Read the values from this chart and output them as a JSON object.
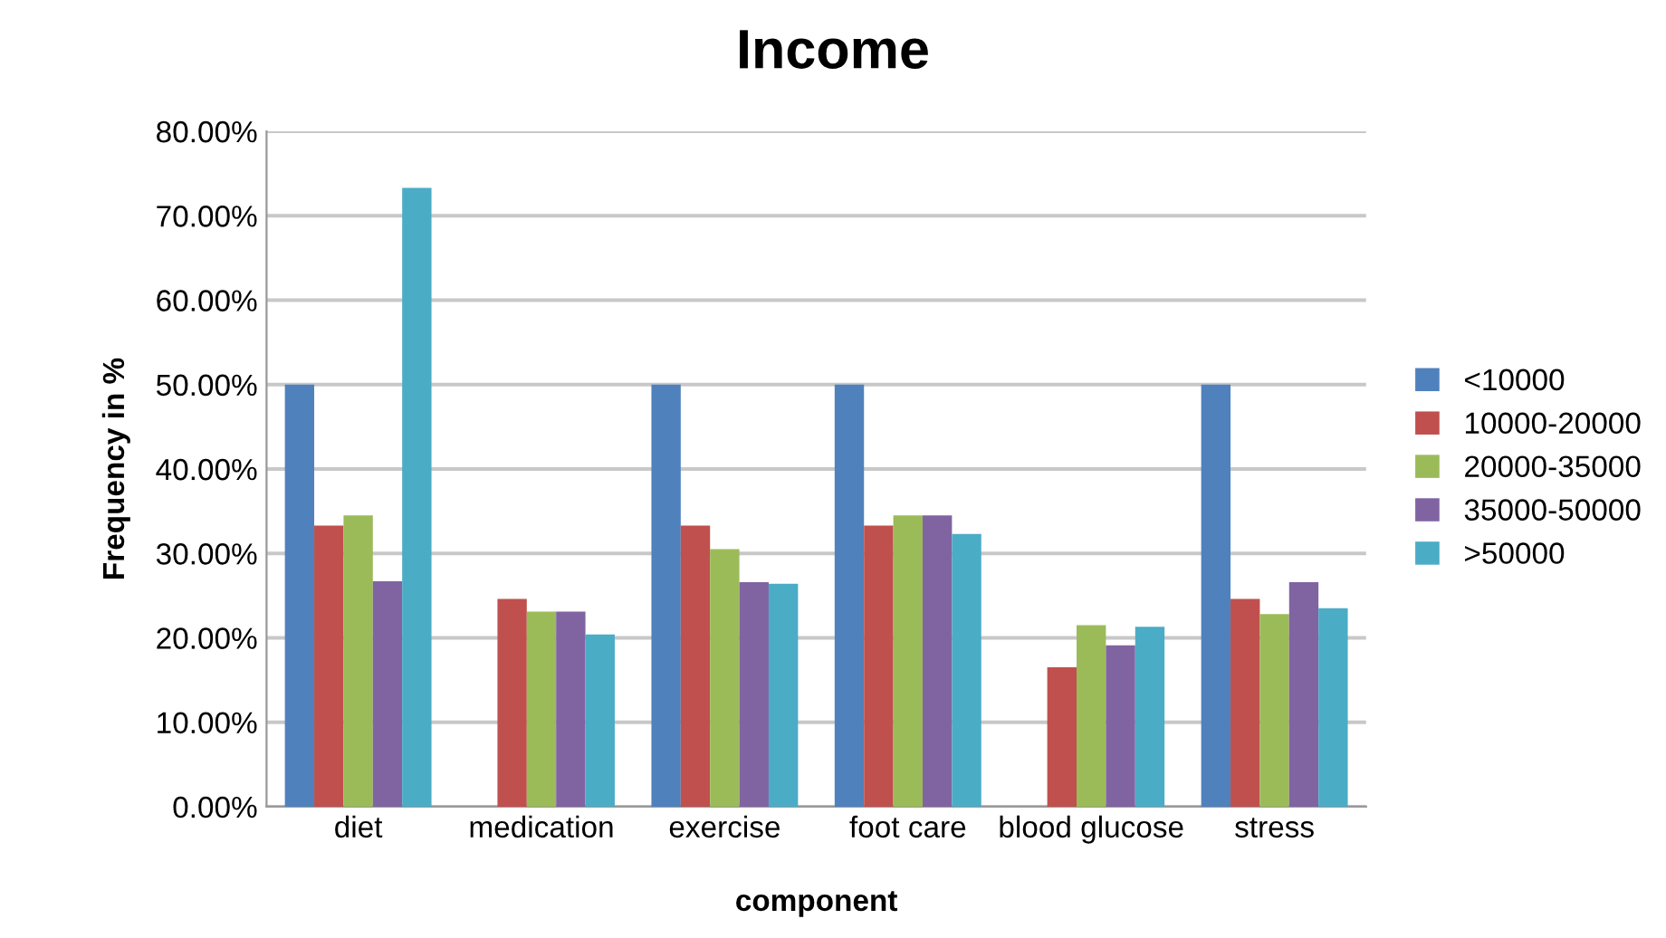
{
  "chart_data": {
    "type": "bar",
    "title": "Income",
    "xlabel": "component",
    "ylabel": "Frequency in %",
    "categories": [
      "diet",
      "medication",
      "exercise",
      "foot care",
      "blood glucose",
      "stress"
    ],
    "series": [
      {
        "name": "<10000",
        "color": "#4f81bd",
        "values": [
          50,
          0,
          50,
          50,
          0,
          50
        ]
      },
      {
        "name": "10000-20000",
        "color": "#c0504d",
        "values": [
          33.3,
          24.6,
          33.3,
          33.3,
          16.5,
          24.6
        ]
      },
      {
        "name": "20000-35000",
        "color": "#9bbb59",
        "values": [
          34.5,
          23.1,
          30.5,
          34.5,
          21.5,
          22.8
        ]
      },
      {
        "name": "35000-50000",
        "color": "#8064a2",
        "values": [
          26.7,
          23.1,
          26.6,
          34.5,
          19.1,
          26.6
        ]
      },
      {
        "name": ">50000",
        "color": "#4bacc6",
        "values": [
          73.3,
          20.4,
          26.4,
          32.3,
          21.3,
          23.5
        ]
      }
    ],
    "ylim": [
      0,
      80
    ],
    "yticks": [
      {
        "value": 0,
        "label": "0.00%"
      },
      {
        "value": 10,
        "label": "10.00%"
      },
      {
        "value": 20,
        "label": "20.00%"
      },
      {
        "value": 30,
        "label": "30.00%"
      },
      {
        "value": 40,
        "label": "40.00%"
      },
      {
        "value": 50,
        "label": "50.00%"
      },
      {
        "value": 60,
        "label": "60.00%"
      },
      {
        "value": 70,
        "label": "70.00%"
      },
      {
        "value": 80,
        "label": "80.00%"
      }
    ],
    "grid": "y",
    "legend": "right"
  }
}
